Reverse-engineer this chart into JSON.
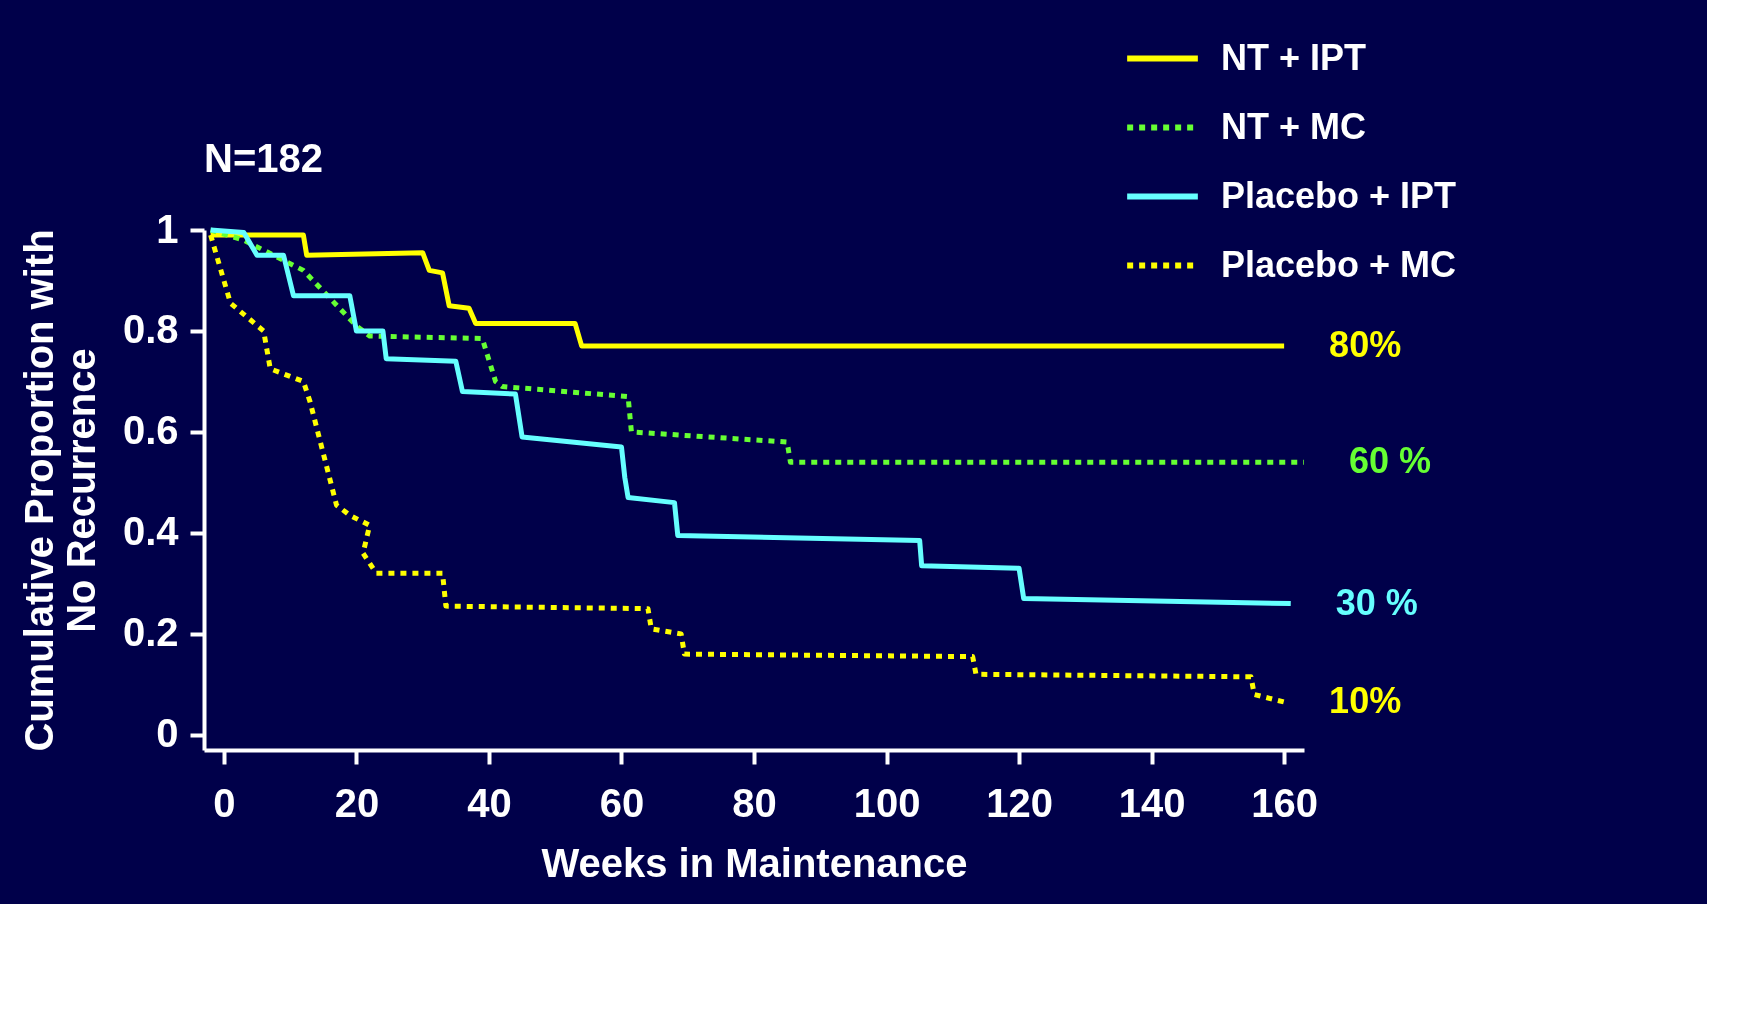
{
  "chart_data": {
    "type": "line",
    "xlabel": "Weeks in Maintenance",
    "ylabel": "Cumulative Proportion with\nNo Recurrence",
    "xlim": [
      -3,
      163
    ],
    "ylim": [
      -0.03,
      1.0
    ],
    "xticks": [
      0,
      20,
      40,
      60,
      80,
      100,
      120,
      140,
      160
    ],
    "yticks": [
      0,
      0.2,
      0.4,
      0.6,
      0.8,
      1
    ],
    "grid": false,
    "legend": "top right",
    "annotations": [
      {
        "text": "80%",
        "x": 160,
        "y": 0.77
      },
      {
        "text": "60 %",
        "x": 163,
        "y": 0.54
      },
      {
        "text": "30 %",
        "x": 161,
        "y": 0.26
      },
      {
        "text": "10%",
        "x": 160,
        "y": 0.065
      },
      "N=182"
    ],
    "series": [
      {
        "name": "NT + IPT",
        "color": "#ffff00",
        "line_style": "solid",
        "x": [
          -2,
          12,
          12.5,
          30,
          31,
          33,
          34,
          37,
          38,
          53,
          54,
          160
        ],
        "values": [
          0.99,
          0.99,
          0.95,
          0.955,
          0.92,
          0.915,
          0.85,
          0.845,
          0.815,
          0.815,
          0.77,
          0.77
        ]
      },
      {
        "name": "NT + MC",
        "color": "#66ff33",
        "line_style": "dotted",
        "x": [
          -2,
          3,
          12,
          20,
          22,
          39,
          41,
          42,
          61,
          61.5,
          85,
          85.5,
          163
        ],
        "values": [
          1.0,
          0.98,
          0.92,
          0.81,
          0.79,
          0.785,
          0.7,
          0.69,
          0.67,
          0.6,
          0.58,
          0.54,
          0.54
        ]
      },
      {
        "name": "Placebo + IPT",
        "color": "#66ffff",
        "line_style": "solid",
        "x": [
          -2,
          3,
          5,
          9,
          10.5,
          19,
          20,
          24,
          24.5,
          35,
          36,
          44,
          45,
          60,
          60.5,
          61,
          68,
          68.5,
          105,
          105.3,
          120,
          120.7,
          161
        ],
        "values": [
          1.0,
          0.995,
          0.95,
          0.95,
          0.87,
          0.87,
          0.8,
          0.8,
          0.745,
          0.74,
          0.68,
          0.675,
          0.59,
          0.57,
          0.51,
          0.47,
          0.46,
          0.395,
          0.385,
          0.335,
          0.33,
          0.27,
          0.26
        ]
      },
      {
        "name": "Placebo + MC",
        "color": "#ffff00",
        "line_style": "dotted",
        "x": [
          -2,
          0,
          1,
          6,
          7,
          12,
          13,
          17,
          19,
          22,
          21,
          23,
          33,
          33.5,
          64,
          64.5,
          69,
          69.5,
          113,
          113.5,
          155,
          155.5,
          160
        ],
        "values": [
          0.99,
          0.9,
          0.855,
          0.8,
          0.725,
          0.7,
          0.66,
          0.455,
          0.435,
          0.415,
          0.36,
          0.32,
          0.32,
          0.255,
          0.25,
          0.21,
          0.2,
          0.16,
          0.155,
          0.12,
          0.115,
          0.08,
          0.065
        ]
      }
    ]
  }
}
